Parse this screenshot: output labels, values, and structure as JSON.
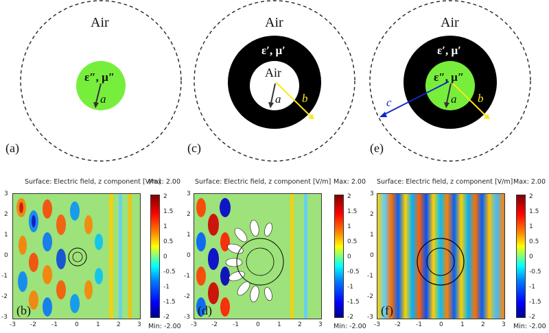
{
  "schematics": {
    "a": {
      "outer_label": "Air",
      "core_label": "ε″, μ″",
      "radius_label": "a",
      "tag": "(a)"
    },
    "c": {
      "outer_label": "Air",
      "shell_label": "ε′, μ′",
      "core_label": "Air",
      "radius_a": "a",
      "radius_b": "b",
      "tag": "(c)"
    },
    "e": {
      "outer_label": "Air",
      "shell_label": "ε′, μ′",
      "core_label": "ε″, μ″",
      "radius_a": "a",
      "radius_b": "b",
      "radius_c": "c",
      "tag": "(e)"
    }
  },
  "plots": {
    "b": {
      "title": "Surface: Electric field, z component [V/m]",
      "max_label": "Max: 2.00",
      "min_label": "Min: -2.00",
      "tag": "(b)"
    },
    "d": {
      "title": "Surface: Electric field, z component [V/m]",
      "max_label": "Max: 2.00",
      "min_label": "Min: -2.00",
      "tag": "(d)"
    },
    "f": {
      "title": "Surface: Electric field, z component [V/m]",
      "max_label": "Max: 2.00",
      "min_label": "Min: -2.00",
      "tag": "(f)"
    }
  },
  "axis_ticks": [
    "-3",
    "-2",
    "-1",
    "0",
    "1",
    "2",
    "3"
  ],
  "colorbar_ticks": [
    "2",
    "1.5",
    "1",
    "0.5",
    "0",
    "-0.5",
    "-1",
    "-1.5",
    "-2"
  ],
  "colors": {
    "core_green": "#77ee3c",
    "shell_black": "#000000",
    "arrow_dark": "#333333",
    "arrow_yellow": "#ffe619",
    "arrow_blue": "#1427c8"
  }
}
